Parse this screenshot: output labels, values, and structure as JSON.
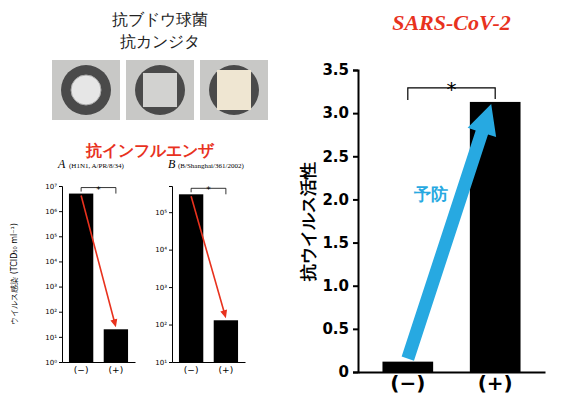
{
  "header": [
    "抗ブドウ球菌",
    "抗カンジタ"
  ],
  "influenza_title": "抗インフルエンザ",
  "chart_data": [
    {
      "type": "bar",
      "title": "A",
      "subtitle": "(H1N1, A/PR/8/34)",
      "y_label": "ウイルス感染 (TCID₅₀ ml⁻¹)",
      "categories": [
        "(−)",
        "(+)"
      ],
      "values": [
        5000000,
        20
      ],
      "color": "#000000",
      "log": "y",
      "ylim": [
        1,
        10000000
      ],
      "yticks": [
        {
          "value": 1,
          "label": "10⁰"
        },
        {
          "value": 10,
          "label": "10¹"
        },
        {
          "value": 100,
          "label": "10²"
        },
        {
          "value": 1000,
          "label": "10³"
        },
        {
          "value": 10000,
          "label": "10⁴"
        },
        {
          "value": 100000,
          "label": "10⁵"
        },
        {
          "value": 1000000,
          "label": "10⁶"
        },
        {
          "value": 10000000,
          "label": "10⁷"
        }
      ],
      "annotations": [
        "*"
      ]
    },
    {
      "type": "bar",
      "title": "B",
      "subtitle": "(B/Shanghai/361/2002)",
      "categories": [
        "(−)",
        "(+)"
      ],
      "values": [
        300000,
        130
      ],
      "color": "#000000",
      "log": "y",
      "ylim": [
        10,
        500000
      ],
      "yticks": [
        {
          "value": 10,
          "label": "10¹"
        },
        {
          "value": 100,
          "label": "10²"
        },
        {
          "value": 1000,
          "label": "10³"
        },
        {
          "value": 10000,
          "label": "10⁴"
        },
        {
          "value": 100000,
          "label": "10⁵"
        }
      ],
      "annotations": [
        "*"
      ]
    },
    {
      "type": "bar",
      "title": "SARS-CoV-2",
      "y_label": "抗ウイルス活性",
      "categories": [
        "(−)",
        "(+)"
      ],
      "values": [
        0.12,
        3.13
      ],
      "color": "#000000",
      "ylim": [
        0,
        3.5
      ],
      "yticks": [
        0,
        0.5,
        {
          "value": 1,
          "label": "1.0"
        },
        1.5,
        {
          "value": 2,
          "label": "2.0"
        },
        2.5,
        {
          "value": 3,
          "label": "3.0"
        },
        3.5
      ],
      "annotations": [
        "*",
        "予防"
      ]
    }
  ]
}
